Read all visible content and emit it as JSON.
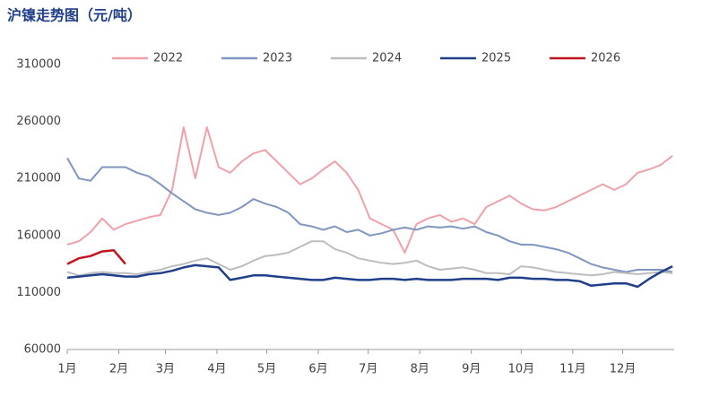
{
  "chart_data": {
    "type": "line",
    "title": "沪镍走势图（元/吨）",
    "x": [
      0,
      7,
      14,
      21,
      28,
      35,
      42,
      49,
      56,
      63,
      70,
      77,
      84,
      91,
      98,
      105,
      112,
      119,
      126,
      133,
      140,
      147,
      154,
      161,
      168,
      175,
      182,
      189,
      196,
      203,
      210,
      217,
      224,
      231,
      238,
      245,
      252,
      259,
      266,
      273,
      280,
      287,
      294,
      301,
      308,
      315,
      322,
      329,
      336,
      343,
      350,
      357,
      364
    ],
    "xlim": [
      0,
      365
    ],
    "xticks": [
      {
        "value": 0,
        "label": "1月"
      },
      {
        "value": 31,
        "label": "2月"
      },
      {
        "value": 59,
        "label": "3月"
      },
      {
        "value": 90,
        "label": "4月"
      },
      {
        "value": 120,
        "label": "5月"
      },
      {
        "value": 151,
        "label": "6月"
      },
      {
        "value": 181,
        "label": "7月"
      },
      {
        "value": 212,
        "label": "8月"
      },
      {
        "value": 243,
        "label": "9月"
      },
      {
        "value": 273,
        "label": "10月"
      },
      {
        "value": 304,
        "label": "11月"
      },
      {
        "value": 334,
        "label": "12月"
      }
    ],
    "ylim": [
      60000,
      310000
    ],
    "yticks": [
      60000,
      110000,
      160000,
      210000,
      260000,
      310000
    ],
    "legend": "top",
    "series": [
      {
        "name": "2022",
        "color": "#f0a0a8",
        "values": [
          152000,
          155000,
          163000,
          175000,
          165000,
          170000,
          173000,
          176000,
          178000,
          200000,
          255000,
          210000,
          255000,
          220000,
          215000,
          225000,
          232000,
          235000,
          225000,
          215000,
          205000,
          210000,
          218000,
          225000,
          215000,
          200000,
          175000,
          170000,
          165000,
          145000,
          170000,
          175000,
          178000,
          172000,
          175000,
          170000,
          185000,
          190000,
          195000,
          188000,
          183000,
          182000,
          185000,
          190000,
          195000,
          200000,
          205000,
          200000,
          205000,
          215000,
          218000,
          222000,
          230000
        ]
      },
      {
        "name": "2023",
        "color": "#7f96c0",
        "values": [
          228000,
          210000,
          208000,
          220000,
          220000,
          220000,
          215000,
          212000,
          205000,
          197000,
          190000,
          183000,
          180000,
          178000,
          180000,
          185000,
          192000,
          188000,
          185000,
          180000,
          170000,
          168000,
          165000,
          168000,
          163000,
          165000,
          160000,
          162000,
          165000,
          167000,
          165000,
          168000,
          167000,
          168000,
          166000,
          168000,
          163000,
          160000,
          155000,
          152000,
          152000,
          150000,
          148000,
          145000,
          140000,
          135000,
          132000,
          130000,
          128000,
          130000,
          130000,
          130000,
          128000
        ]
      },
      {
        "name": "2024",
        "color": "#bdbdbd",
        "values": [
          128000,
          125000,
          127000,
          128000,
          127000,
          127000,
          126000,
          128000,
          130000,
          133000,
          135000,
          138000,
          140000,
          135000,
          130000,
          133000,
          138000,
          142000,
          143000,
          145000,
          150000,
          155000,
          155000,
          148000,
          145000,
          140000,
          138000,
          136000,
          135000,
          136000,
          138000,
          133000,
          130000,
          131000,
          132000,
          130000,
          127000,
          127000,
          126000,
          133000,
          132000,
          130000,
          128000,
          127000,
          126000,
          125000,
          126000,
          128000,
          127000,
          126000,
          127000,
          128000,
          127000
        ]
      },
      {
        "name": "2025",
        "color": "#1f3f8a",
        "values": [
          123000,
          124000,
          125000,
          126000,
          125000,
          124000,
          124000,
          126000,
          127000,
          129000,
          132000,
          134000,
          133000,
          132000,
          121000,
          123000,
          125000,
          125000,
          124000,
          123000,
          122000,
          121000,
          121000,
          123000,
          122000,
          121000,
          121000,
          122000,
          122000,
          121000,
          122000,
          121000,
          121000,
          121000,
          122000,
          122000,
          122000,
          121000,
          123000,
          123000,
          122000,
          122000,
          121000,
          121000,
          120000,
          116000,
          117000,
          118000,
          118000,
          115000,
          122000,
          128000,
          133000
        ]
      },
      {
        "name": "2026",
        "color": "#c0141e",
        "values": [
          135000,
          140000,
          142000,
          146000,
          147000,
          135000,
          null,
          null,
          null,
          null,
          null,
          null,
          null,
          null,
          null,
          null,
          null,
          null,
          null,
          null,
          null,
          null,
          null,
          null,
          null,
          null,
          null,
          null,
          null,
          null,
          null,
          null,
          null,
          null,
          null,
          null,
          null,
          null,
          null,
          null,
          null,
          null,
          null,
          null,
          null,
          null,
          null,
          null,
          null,
          null,
          null,
          null,
          null
        ]
      }
    ]
  }
}
